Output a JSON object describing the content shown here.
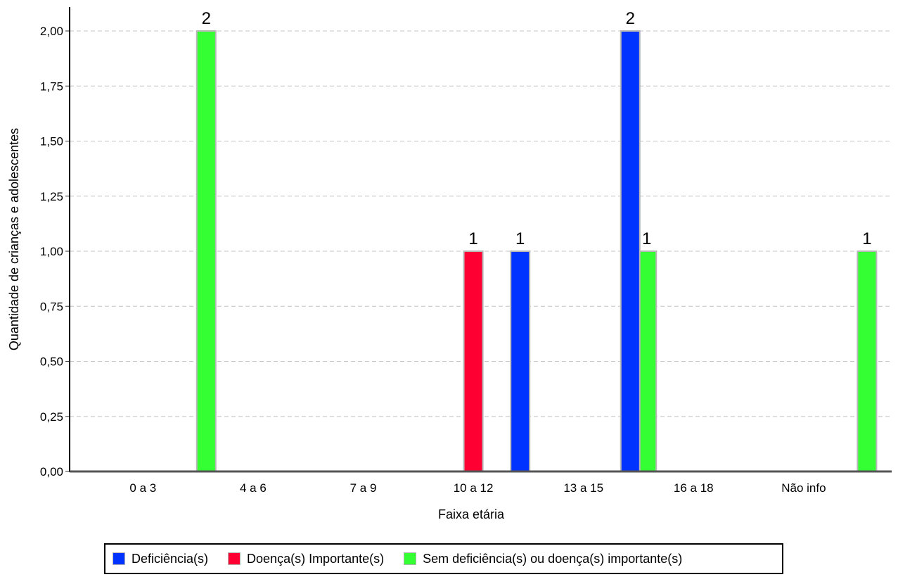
{
  "chart_data": {
    "type": "bar",
    "title": "",
    "xlabel": "Faixa etária",
    "ylabel": "Quantidade de crianças e adolescentes",
    "categories": [
      "0 a 3",
      "4 a 6",
      "7 a 9",
      "10 a 12",
      "13 a 15",
      "16 a 18",
      "Não info"
    ],
    "ylim": [
      0,
      2.0
    ],
    "yticks": [
      "0,00",
      "0,25",
      "0,50",
      "0,75",
      "1,00",
      "1,25",
      "1,50",
      "1,75",
      "2,00"
    ],
    "grid": true,
    "legend_position": "bottom",
    "series": [
      {
        "name": "Deficiência(s)",
        "color": "#0033ff",
        "values": [
          0,
          0,
          0,
          0,
          1,
          2,
          0
        ]
      },
      {
        "name": "Doença(s) Importante(s)",
        "color": "#ff0033",
        "values": [
          0,
          0,
          0,
          1,
          0,
          0,
          0
        ]
      },
      {
        "name": "Sem deficiência(s) ou doença(s) importante(s)",
        "color": "#33ff33",
        "values": [
          2,
          0,
          0,
          0,
          1,
          0,
          1
        ]
      }
    ],
    "data_labels": true
  }
}
